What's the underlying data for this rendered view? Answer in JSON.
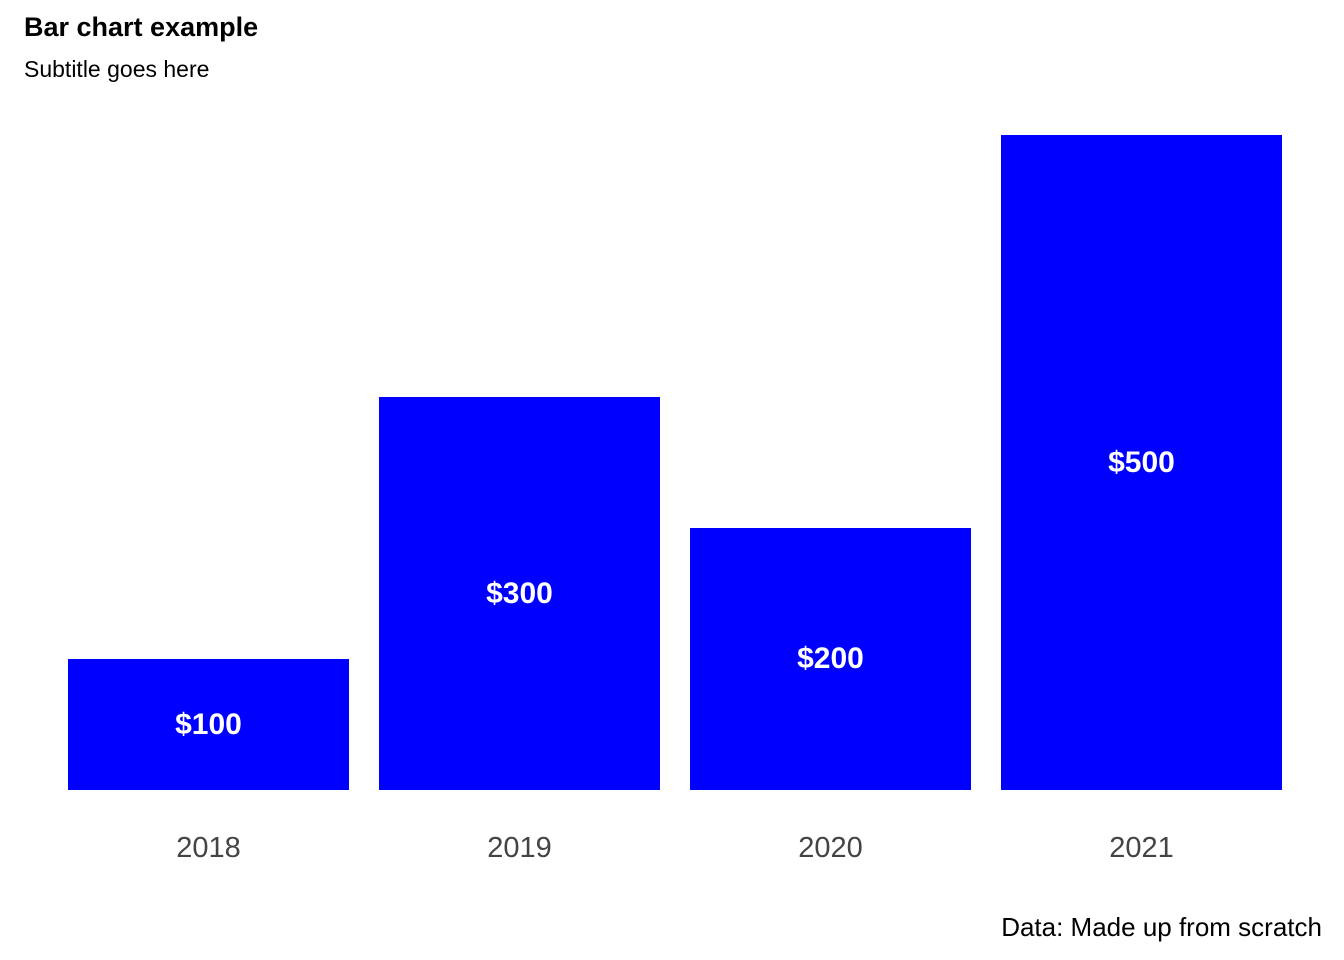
{
  "header": {
    "title": "Bar chart example",
    "subtitle": "Subtitle goes here"
  },
  "footer": {
    "caption": "Data: Made up from scratch"
  },
  "colors": {
    "bar": "#0000ff",
    "bar_label": "#ffffff",
    "axis_text": "#444444",
    "title_text": "#000000"
  },
  "chart_data": {
    "type": "bar",
    "title": "Bar chart example",
    "subtitle": "Subtitle goes here",
    "caption": "Data: Made up from scratch",
    "categories": [
      "2018",
      "2019",
      "2020",
      "2021"
    ],
    "values": [
      100,
      300,
      200,
      500
    ],
    "value_labels": [
      "$100",
      "$300",
      "$200",
      "$500"
    ],
    "xlabel": "",
    "ylabel": "",
    "ylim": [
      0,
      500
    ],
    "grid": false,
    "legend": false,
    "y_axis_shown": false,
    "bar_color": "#0000ff",
    "label_color": "#ffffff"
  }
}
